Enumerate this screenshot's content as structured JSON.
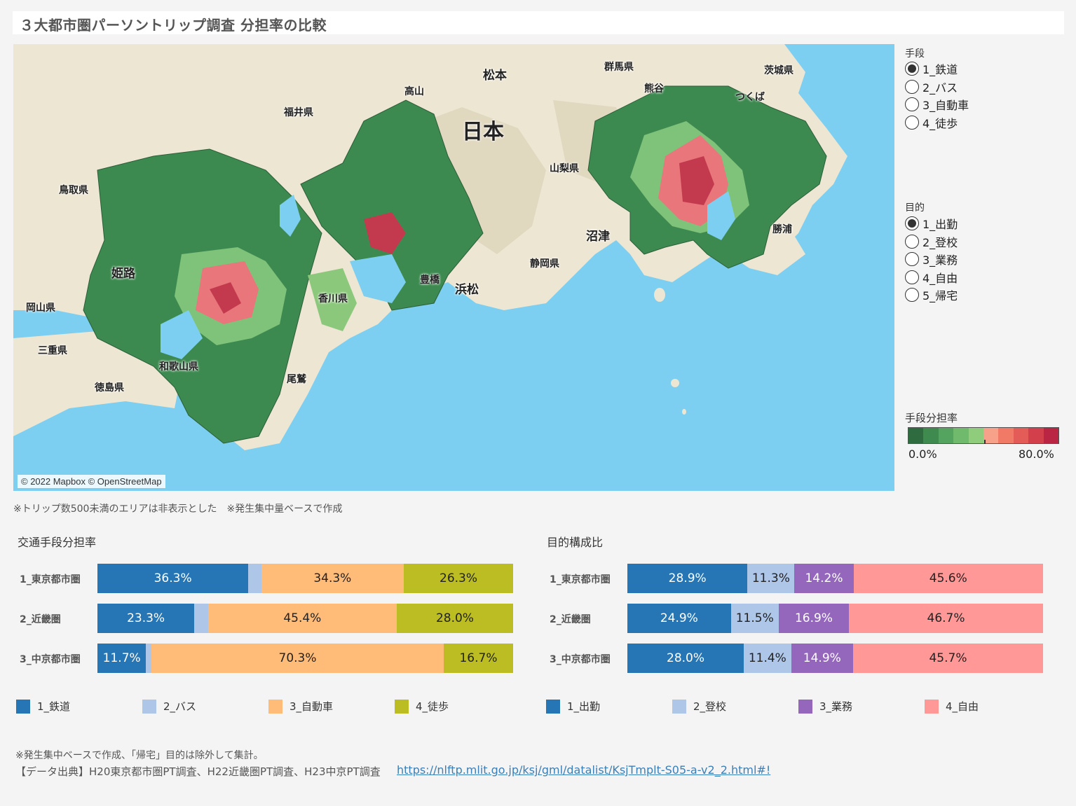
{
  "title": "３大都市圏パーソントリップ調査 分担率の比較",
  "map": {
    "copyright": "© 2022 Mapbox © OpenStreetMap",
    "labels": [
      {
        "text": "日本",
        "cls": "big"
      },
      {
        "text": "松本",
        "cls": "city"
      },
      {
        "text": "群馬県",
        "cls": ""
      },
      {
        "text": "茨城県",
        "cls": ""
      },
      {
        "text": "高山",
        "cls": ""
      },
      {
        "text": "福井県",
        "cls": ""
      },
      {
        "text": "熊谷",
        "cls": ""
      },
      {
        "text": "つくば",
        "cls": ""
      },
      {
        "text": "山梨県",
        "cls": ""
      },
      {
        "text": "鳥取県",
        "cls": ""
      },
      {
        "text": "沼津",
        "cls": "city"
      },
      {
        "text": "勝浦",
        "cls": ""
      },
      {
        "text": "静岡県",
        "cls": ""
      },
      {
        "text": "姫路",
        "cls": "city"
      },
      {
        "text": "浜松",
        "cls": "city"
      },
      {
        "text": "豊橋",
        "cls": ""
      },
      {
        "text": "岡山県",
        "cls": ""
      },
      {
        "text": "三重県",
        "cls": ""
      },
      {
        "text": "香川県",
        "cls": ""
      },
      {
        "text": "和歌山県",
        "cls": ""
      },
      {
        "text": "尾鷲",
        "cls": ""
      },
      {
        "text": "徳島県",
        "cls": ""
      }
    ]
  },
  "filters": {
    "mode": {
      "title": "手段",
      "options": [
        "1_鉄道",
        "2_バス",
        "3_自動車",
        "4_徒歩"
      ],
      "selected": "1_鉄道"
    },
    "purpose": {
      "title": "目的",
      "options": [
        "1_出勤",
        "2_登校",
        "3_業務",
        "4_自由",
        "5_帰宅"
      ],
      "selected": "1_出勤"
    }
  },
  "color_legend": {
    "title": "手段分担率",
    "min_label": "0.0%",
    "max_label": "80.0%",
    "colors": [
      "#2e6b3f",
      "#3f8a4e",
      "#54a35e",
      "#6fba6c",
      "#8fcc7c",
      "#f7a08a",
      "#f07a66",
      "#e45c57",
      "#d43f4c",
      "#b92543"
    ]
  },
  "map_note": "※トリップ数500未満のエリアは非表示とした　※発生集中量ベースで作成",
  "chart_data": [
    {
      "type": "bar",
      "title": "交通手段分担率",
      "categories": [
        "1_東京都市圏",
        "2_近畿圏",
        "3_中京都市圏"
      ],
      "series": [
        {
          "name": "1_鉄道",
          "color": "#2676b5",
          "values": [
            36.3,
            23.3,
            11.7
          ]
        },
        {
          "name": "2_バス",
          "color": "#aec6e8",
          "values": [
            3.1,
            3.3,
            1.3
          ]
        },
        {
          "name": "3_自動車",
          "color": "#ffbb78",
          "values": [
            34.3,
            45.4,
            70.3
          ]
        },
        {
          "name": "4_徒歩",
          "color": "#bcbd22",
          "values": [
            26.3,
            28.0,
            16.7
          ]
        }
      ],
      "label_min": 10
    },
    {
      "type": "bar",
      "title": "目的構成比",
      "categories": [
        "1_東京都市圏",
        "2_近畿圏",
        "3_中京都市圏"
      ],
      "series": [
        {
          "name": "1_出勤",
          "color": "#2676b5",
          "values": [
            28.9,
            24.9,
            28.0
          ]
        },
        {
          "name": "2_登校",
          "color": "#aec6e8",
          "values": [
            11.3,
            11.5,
            11.4
          ]
        },
        {
          "name": "3_業務",
          "color": "#9467bd",
          "values": [
            14.2,
            16.9,
            14.9
          ]
        },
        {
          "name": "4_自由",
          "color": "#ff9896",
          "values": [
            45.6,
            46.7,
            45.7
          ]
        }
      ],
      "label_min": 10
    }
  ],
  "footnote1": "※発生集中ベースで作成、「帰宅」目的は除外して集計。",
  "footnote2": "【データ出典】H20東京都市圏PT調査、H22近畿圏PT調査、H23中京PT調査",
  "source_link": "https://nlftp.mlit.go.jp/ksj/gml/datalist/KsjTmplt-S05-a-v2_2.html#!"
}
